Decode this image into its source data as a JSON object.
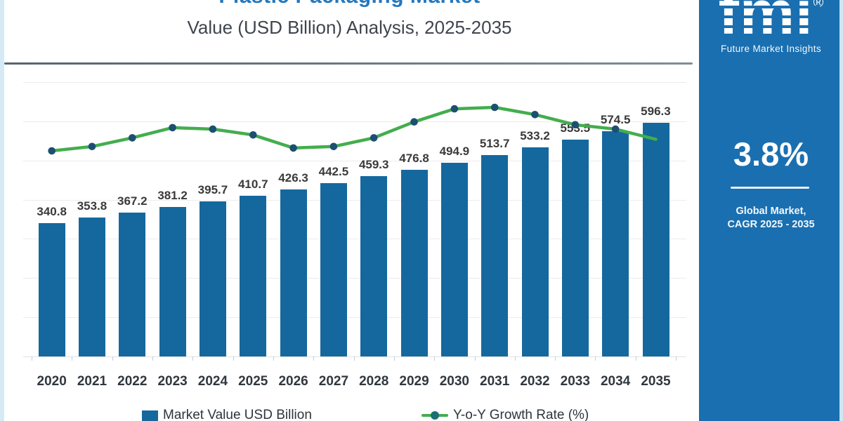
{
  "header": {
    "title_line1": "Plastic Packaging Market",
    "title_line2": "Value (USD Billion) Analysis, 2025-2035"
  },
  "sidebar": {
    "logo_text": "fmi",
    "logo_registered": "®",
    "logo_subtitle": "Future Market Insights",
    "cagr_value": "3.8%",
    "cagr_caption_line1": "Global Market,",
    "cagr_caption_line2": "CAGR 2025 - 2035",
    "background_color": "#1a6fb0"
  },
  "chart_data": {
    "type": "bar",
    "title": "Plastic Packaging Market Value (USD Billion) Analysis, 2025-2035",
    "categories": [
      "2020",
      "2021",
      "2022",
      "2023",
      "2024",
      "2025",
      "2026",
      "2027",
      "2028",
      "2029",
      "2030",
      "2031",
      "2032",
      "2033",
      "2034",
      "2035"
    ],
    "series": [
      {
        "name": "Market Value USD Billion",
        "type": "bar",
        "color": "#15689e",
        "values": [
          340.8,
          353.8,
          367.2,
          381.2,
          395.7,
          410.7,
          426.3,
          442.5,
          459.3,
          476.8,
          494.9,
          513.7,
          533.2,
          553.5,
          574.5,
          596.3
        ]
      },
      {
        "name": "Y-o-Y Growth Rate (%)",
        "type": "line",
        "color": "#44ad4e",
        "marker_color": "#1d4f71",
        "estimated": true,
        "values": [
          3.7,
          3.73,
          3.79,
          3.86,
          3.85,
          3.81,
          3.72,
          3.73,
          3.79,
          3.9,
          3.99,
          4.0,
          3.95,
          3.88,
          3.85,
          3.78
        ]
      }
    ],
    "xlabel": "",
    "ylabel": "",
    "ylim": [
      0,
      700
    ],
    "gridline_step": 100,
    "grid": true,
    "value_labels_shown": true,
    "legend_position": "bottom"
  },
  "legend": {
    "items": [
      {
        "label": "Market Value USD Billion",
        "marker": "square",
        "color": "#15689e"
      },
      {
        "label": "Y-o-Y Growth Rate (%)",
        "marker": "line-dot",
        "color": "#44ad4e",
        "dot_color": "#1d6e75"
      }
    ]
  }
}
